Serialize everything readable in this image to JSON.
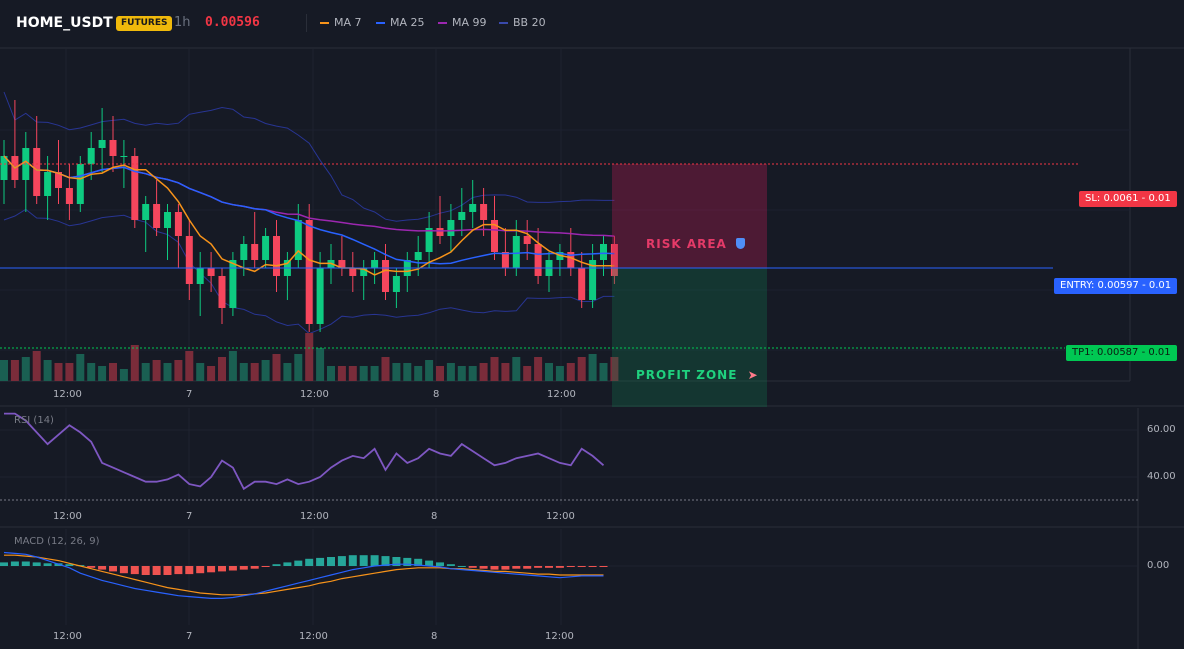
{
  "header": {
    "symbol": "HOME_USDT",
    "badge": "FUTURES",
    "timeframe": "1h",
    "last_price": "0.00596",
    "legend": [
      {
        "label": "MA 7",
        "color": "#f7931a"
      },
      {
        "label": "MA 25",
        "color": "#2962ff"
      },
      {
        "label": "MA 99",
        "color": "#9c27b0"
      },
      {
        "label": "BB 20",
        "color": "#283593"
      }
    ]
  },
  "levels": {
    "sl_label": "SL: 0.0061",
    "sl_qty": "- 0.01",
    "entry_label": "ENTRY: 0.00597",
    "entry_qty": "- 0.01",
    "tp_label": "TP1: 0.00587",
    "tp_qty": "- 0.01"
  },
  "zones": {
    "risk": "RISK AREA",
    "profit": "PROFIT ZONE"
  },
  "colors": {
    "up": "#0ecb81",
    "down": "#f6465d",
    "sl": "#f23645",
    "entry": "#2962ff",
    "tp": "#00c853",
    "rsi": "#7e57c2",
    "macd": "#2962ff",
    "signal": "#f7931a"
  },
  "time_labels": [
    "12:00",
    "7",
    "12:00",
    "8",
    "12:00"
  ],
  "rsi": {
    "title": "RSI (14)",
    "ticks": [
      "60.00",
      "40.00"
    ]
  },
  "macd": {
    "title": "MACD (12, 26, 9)",
    "ticks": [
      "0.00"
    ]
  },
  "chart_data": [
    {
      "type": "candlestick",
      "title": "HOME_USDT 1h",
      "x_labels": [
        "12:00",
        "7",
        "12:00",
        "8",
        "12:00"
      ],
      "ylim": [
        0.00583,
        0.00623
      ],
      "levels": {
        "sl": 0.0061,
        "entry": 0.00597,
        "tp1": 0.00587
      },
      "ohlc": [
        [
          0.00608,
          0.00613,
          0.00605,
          0.00611
        ],
        [
          0.00611,
          0.00618,
          0.00607,
          0.00608
        ],
        [
          0.00608,
          0.00614,
          0.00604,
          0.00612
        ],
        [
          0.00612,
          0.00616,
          0.00605,
          0.00606
        ],
        [
          0.00606,
          0.00611,
          0.00603,
          0.00609
        ],
        [
          0.00609,
          0.00613,
          0.00605,
          0.00607
        ],
        [
          0.00607,
          0.0061,
          0.00603,
          0.00605
        ],
        [
          0.00605,
          0.00611,
          0.00604,
          0.0061
        ],
        [
          0.0061,
          0.00614,
          0.00608,
          0.00612
        ],
        [
          0.00612,
          0.00617,
          0.00609,
          0.00613
        ],
        [
          0.00613,
          0.00616,
          0.00609,
          0.00611
        ],
        [
          0.00611,
          0.00613,
          0.00607,
          0.00611
        ],
        [
          0.00611,
          0.00612,
          0.00602,
          0.00603
        ],
        [
          0.00603,
          0.00606,
          0.00599,
          0.00605
        ],
        [
          0.00605,
          0.00608,
          0.00601,
          0.00602
        ],
        [
          0.00602,
          0.00605,
          0.00598,
          0.00604
        ],
        [
          0.00604,
          0.00605,
          0.00597,
          0.00601
        ],
        [
          0.00601,
          0.00603,
          0.00593,
          0.00595
        ],
        [
          0.00595,
          0.00599,
          0.00591,
          0.00597
        ],
        [
          0.00597,
          0.00599,
          0.00594,
          0.00596
        ],
        [
          0.00596,
          0.00597,
          0.0059,
          0.00592
        ],
        [
          0.00592,
          0.00599,
          0.00591,
          0.00598
        ],
        [
          0.00598,
          0.00601,
          0.00596,
          0.006
        ],
        [
          0.006,
          0.00604,
          0.00597,
          0.00598
        ],
        [
          0.00598,
          0.00602,
          0.00597,
          0.00601
        ],
        [
          0.00601,
          0.00603,
          0.00594,
          0.00596
        ],
        [
          0.00596,
          0.00599,
          0.00593,
          0.00598
        ],
        [
          0.00598,
          0.00605,
          0.00597,
          0.00603
        ],
        [
          0.00603,
          0.00605,
          0.00589,
          0.0059
        ],
        [
          0.0059,
          0.00599,
          0.00589,
          0.00597
        ],
        [
          0.00597,
          0.006,
          0.00595,
          0.00598
        ],
        [
          0.00598,
          0.00601,
          0.00596,
          0.00597
        ],
        [
          0.00597,
          0.00599,
          0.00594,
          0.00596
        ],
        [
          0.00596,
          0.00598,
          0.00593,
          0.00597
        ],
        [
          0.00597,
          0.00599,
          0.00595,
          0.00598
        ],
        [
          0.00598,
          0.006,
          0.00593,
          0.00594
        ],
        [
          0.00594,
          0.00597,
          0.00592,
          0.00596
        ],
        [
          0.00596,
          0.00599,
          0.00594,
          0.00598
        ],
        [
          0.00598,
          0.00601,
          0.00596,
          0.00599
        ],
        [
          0.00599,
          0.00604,
          0.00597,
          0.00602
        ],
        [
          0.00602,
          0.00606,
          0.006,
          0.00601
        ],
        [
          0.00601,
          0.00605,
          0.00599,
          0.00603
        ],
        [
          0.00603,
          0.00607,
          0.00601,
          0.00604
        ],
        [
          0.00604,
          0.00608,
          0.00602,
          0.00605
        ],
        [
          0.00605,
          0.00607,
          0.00601,
          0.00603
        ],
        [
          0.00603,
          0.00606,
          0.00598,
          0.00599
        ],
        [
          0.00599,
          0.00602,
          0.00596,
          0.00597
        ],
        [
          0.00597,
          0.00603,
          0.00596,
          0.00601
        ],
        [
          0.00601,
          0.00603,
          0.00598,
          0.006
        ],
        [
          0.006,
          0.00602,
          0.00595,
          0.00596
        ],
        [
          0.00596,
          0.00599,
          0.00594,
          0.00598
        ],
        [
          0.00598,
          0.006,
          0.00596,
          0.00599
        ],
        [
          0.00599,
          0.00602,
          0.00596,
          0.00597
        ],
        [
          0.00597,
          0.00599,
          0.00592,
          0.00593
        ],
        [
          0.00593,
          0.006,
          0.00592,
          0.00598
        ],
        [
          0.00598,
          0.00601,
          0.00596,
          0.006
        ],
        [
          0.006,
          0.00601,
          0.00595,
          0.00596
        ]
      ]
    },
    {
      "type": "line",
      "title": "RSI (14)",
      "ylim": [
        30,
        70
      ],
      "ticks": [
        60,
        40
      ],
      "values": [
        67,
        67,
        64,
        59,
        54,
        58,
        62,
        59,
        55,
        46,
        44,
        42,
        40,
        38,
        38,
        39,
        41,
        37,
        36,
        40,
        47,
        44,
        35,
        38,
        38,
        37,
        39,
        37,
        38,
        40,
        44,
        47,
        49,
        48,
        52,
        43,
        50,
        46,
        48,
        52,
        50,
        49,
        54,
        51,
        48,
        45,
        46,
        48,
        49,
        50,
        48,
        46,
        45,
        52,
        49,
        45
      ]
    },
    {
      "type": "bar",
      "title": "MACD (12, 26, 9)",
      "ticks": [
        0
      ],
      "macd_hist": [
        0.4,
        0.5,
        0.5,
        0.4,
        0.3,
        0.3,
        0.2,
        0.1,
        -0.2,
        -0.4,
        -0.6,
        -0.8,
        -0.9,
        -1.0,
        -1.0,
        -1.0,
        -0.9,
        -0.9,
        -0.8,
        -0.7,
        -0.6,
        -0.5,
        -0.4,
        -0.3,
        -0.1,
        0.2,
        0.4,
        0.6,
        0.8,
        0.9,
        1.0,
        1.1,
        1.2,
        1.2,
        1.2,
        1.1,
        1.0,
        0.9,
        0.8,
        0.6,
        0.4,
        0.2,
        0.0,
        -0.2,
        -0.3,
        -0.4,
        -0.4,
        -0.3,
        -0.3,
        -0.2,
        -0.2,
        -0.2,
        -0.1,
        -0.1,
        -0.1,
        -0.1
      ],
      "macd_line": [
        1.5,
        1.4,
        1.3,
        1.0,
        0.6,
        0.2,
        -0.2,
        -0.8,
        -1.2,
        -1.6,
        -1.9,
        -2.2,
        -2.5,
        -2.7,
        -2.9,
        -3.1,
        -3.3,
        -3.4,
        -3.5,
        -3.6,
        -3.6,
        -3.5,
        -3.3,
        -3.1,
        -2.8,
        -2.5,
        -2.2,
        -1.9,
        -1.6,
        -1.3,
        -1.0,
        -0.7,
        -0.4,
        -0.2,
        0.0,
        0.1,
        0.2,
        0.2,
        0.1,
        0.0,
        -0.1,
        -0.3,
        -0.4,
        -0.5,
        -0.6,
        -0.7,
        -0.8,
        -0.9,
        -1.0,
        -1.1,
        -1.2,
        -1.3,
        -1.2,
        -1.1,
        -1.1,
        -1.1
      ],
      "signal_line": [
        1.2,
        1.2,
        1.1,
        1.0,
        0.8,
        0.6,
        0.3,
        0.0,
        -0.3,
        -0.6,
        -0.9,
        -1.2,
        -1.5,
        -1.8,
        -2.1,
        -2.4,
        -2.6,
        -2.8,
        -3.0,
        -3.1,
        -3.2,
        -3.2,
        -3.2,
        -3.1,
        -3.0,
        -2.8,
        -2.6,
        -2.4,
        -2.2,
        -1.9,
        -1.7,
        -1.4,
        -1.2,
        -1.0,
        -0.8,
        -0.6,
        -0.4,
        -0.3,
        -0.2,
        -0.2,
        -0.2,
        -0.3,
        -0.3,
        -0.4,
        -0.5,
        -0.6,
        -0.6,
        -0.7,
        -0.8,
        -0.9,
        -0.9,
        -1.0,
        -1.0,
        -1.0,
        -1.0,
        -1.0
      ]
    }
  ]
}
